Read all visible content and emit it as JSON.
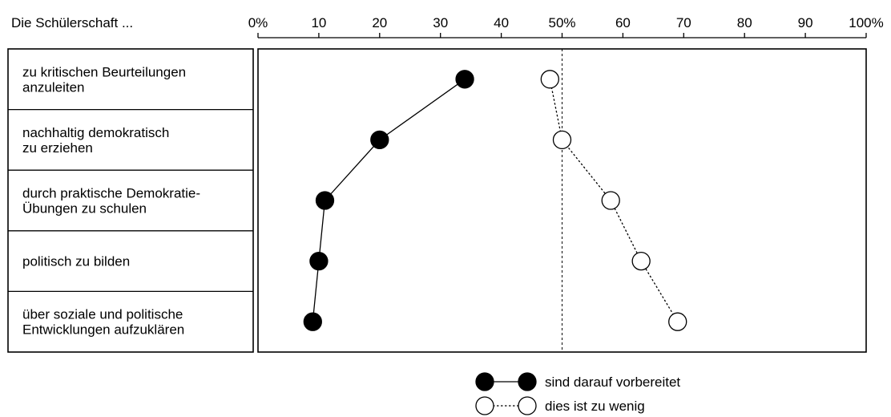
{
  "chart_data": {
    "type": "scatter",
    "title": "",
    "xlabel": "",
    "ylabel": "",
    "xlim": [
      0,
      100
    ],
    "category_header": "Die Schülerschaft ...",
    "x_ticks": [
      0,
      10,
      20,
      30,
      40,
      50,
      60,
      70,
      80,
      90,
      100
    ],
    "x_tick_labels": [
      "0%",
      "10",
      "20",
      "30",
      "40",
      "50%",
      "60",
      "70",
      "80",
      "90",
      "100%"
    ],
    "reference_line": 50,
    "categories": [
      [
        "zu kritischen Beurteilungen",
        "anzuleiten"
      ],
      [
        "nachhaltig demokratisch",
        "zu erziehen"
      ],
      [
        "durch praktische Demokratie-",
        "Übungen zu schulen"
      ],
      [
        "politisch zu bilden"
      ],
      [
        "über soziale und politische",
        "Entwicklungen aufzuklären"
      ]
    ],
    "series": [
      {
        "name": "sind darauf vorbereitet",
        "values": [
          34,
          20,
          11,
          10,
          9
        ],
        "marker": "filled",
        "line": "solid",
        "color": "#000000"
      },
      {
        "name": "dies ist zu wenig",
        "values": [
          48,
          50,
          58,
          63,
          69
        ],
        "marker": "open",
        "line": "dotted",
        "color": "#000000"
      }
    ],
    "legend_position": "bottom-center",
    "grid": false
  }
}
